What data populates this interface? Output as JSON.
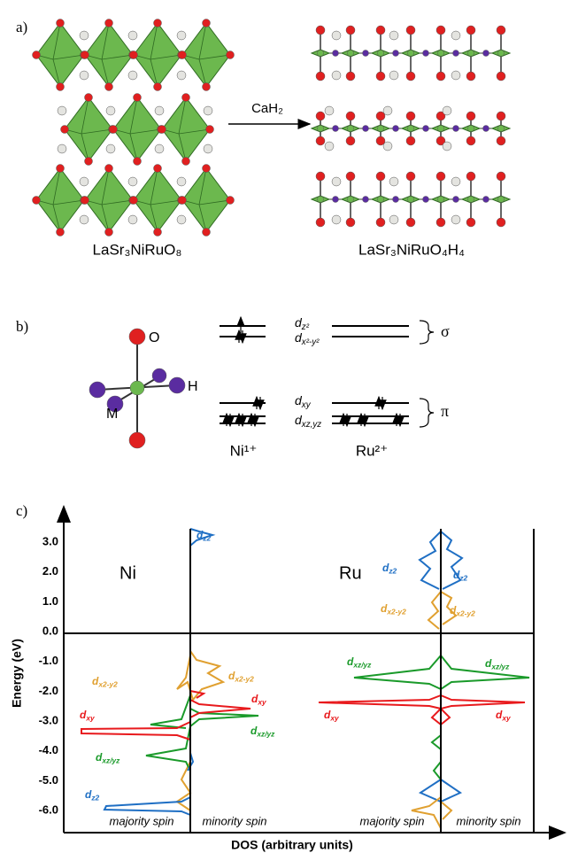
{
  "panel_a": {
    "label": "a)",
    "reagent": "CaH₂",
    "reactant": "LaSr₃NiRuO₈",
    "product": "LaSr₃NiRuO₄H₄"
  },
  "panel_b": {
    "label": "b)",
    "atoms": [
      "O",
      "H",
      "M"
    ],
    "sigma_orbitals": [
      {
        "base": "d",
        "sub": "z²"
      },
      {
        "base": "d",
        "sub": "x²-y²"
      }
    ],
    "pi_orbitals": [
      {
        "base": "d",
        "sub": "xy"
      },
      {
        "base": "d",
        "sub": "xz,yz"
      }
    ],
    "sigma": "σ",
    "pi": "π",
    "ions": [
      "Ni¹⁺",
      "Ru²⁺"
    ]
  },
  "panel_c": {
    "label": "c)",
    "y_axis_label": "Energy (eV)",
    "x_axis_label": "DOS (arbitrary units)",
    "yticks": [
      "3.0",
      "2.0",
      "1.0",
      "0.0",
      "-1.0",
      "-2.0",
      "-3.0",
      "-4.0",
      "-5.0",
      "-6.0"
    ],
    "elements": [
      "Ni",
      "Ru"
    ],
    "spins": [
      "majority spin",
      "minority spin",
      "majority spin",
      "minority spin"
    ],
    "annotations": [
      {
        "base": "d",
        "sub": "z2",
        "color": "#1f6fc4"
      },
      {
        "base": "d",
        "sub": "x2-y2",
        "color": "#e0a030"
      },
      {
        "base": "d",
        "sub": "x2-y2",
        "color": "#e0a030"
      },
      {
        "base": "d",
        "sub": "xy",
        "color": "#e8191c"
      },
      {
        "base": "d",
        "sub": "xy",
        "color": "#e8191c"
      },
      {
        "base": "d",
        "sub": "xz/yz",
        "color": "#1a9a2a"
      },
      {
        "base": "d",
        "sub": "xz/yz",
        "color": "#1a9a2a"
      },
      {
        "base": "d",
        "sub": "z2",
        "color": "#1f6fc4"
      },
      {
        "base": "d",
        "sub": "z2",
        "color": "#1f6fc4"
      },
      {
        "base": "d",
        "sub": "z2",
        "color": "#1f6fc4"
      },
      {
        "base": "d",
        "sub": "x2-y2",
        "color": "#e0a030"
      },
      {
        "base": "d",
        "sub": "x2-y2",
        "color": "#e0a030"
      },
      {
        "base": "d",
        "sub": "xz/yz",
        "color": "#1a9a2a"
      },
      {
        "base": "d",
        "sub": "xz/yz",
        "color": "#1a9a2a"
      },
      {
        "base": "d",
        "sub": "xy",
        "color": "#e8191c"
      },
      {
        "base": "d",
        "sub": "xy",
        "color": "#e8191c"
      }
    ]
  }
}
